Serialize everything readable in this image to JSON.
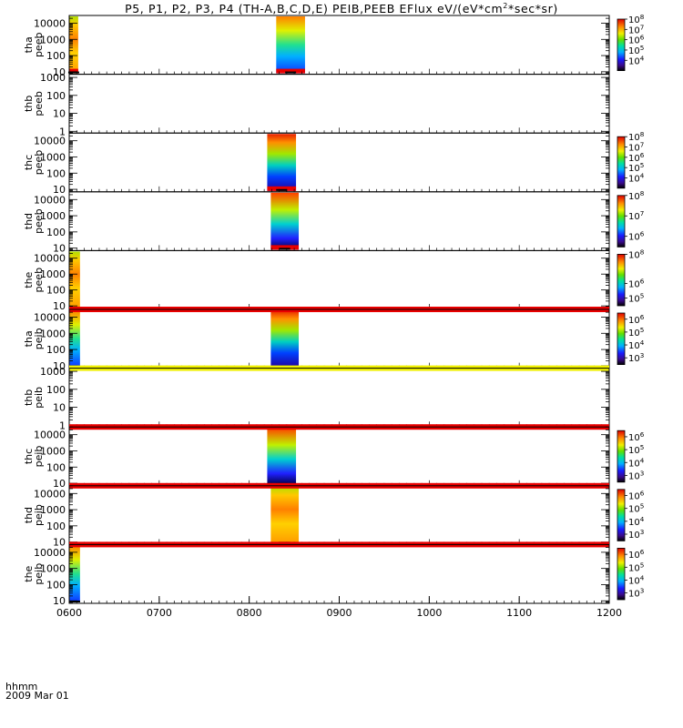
{
  "title": {
    "main": "P5, P1, P2, P3, P4 (TH-A,B,C,D,E) PEIB,PEEB EFlux eV/(eV*cm",
    "sup": "2",
    "tail": "*sec*sr)"
  },
  "footer": {
    "hhmm": "hhmm",
    "date": "2009 Mar 01"
  },
  "chart_data": {
    "type": "heatmap",
    "x_axis": {
      "range_hours": [
        6.0,
        12.0
      ],
      "ticks": [
        {
          "value": 6,
          "label": "0600"
        },
        {
          "value": 7,
          "label": "0700"
        },
        {
          "value": 8,
          "label": "0800"
        },
        {
          "value": 9,
          "label": "0900"
        },
        {
          "value": 10,
          "label": "1000"
        },
        {
          "value": 11,
          "label": "1100"
        },
        {
          "value": 12,
          "label": "1200"
        }
      ]
    },
    "panels": [
      {
        "probe": "tha",
        "product": "peeb",
        "ylim": [
          7,
          30000
        ],
        "yscale": "log",
        "yticks": [
          "10",
          "100",
          "1000",
          "10000"
        ],
        "data_intervals": [
          [
            6.0,
            6.1
          ],
          [
            8.3,
            8.62
          ]
        ],
        "bottom_band": "red",
        "colorbar": {
          "range": [
            1000.0,
            100000000.0
          ],
          "labels": [
            "10^4",
            "10^5",
            "10^6",
            "10^7",
            "10^8"
          ]
        }
      },
      {
        "probe": "thb",
        "product": "peeb",
        "ylim": [
          0.8,
          1500
        ],
        "yscale": "log",
        "yticks": [
          "1",
          "10",
          "100",
          "1000"
        ],
        "data_intervals": [],
        "colorbar": null
      },
      {
        "probe": "thc",
        "product": "peeb",
        "ylim": [
          7,
          30000
        ],
        "yscale": "log",
        "yticks": [
          "10",
          "100",
          "1000",
          "10000"
        ],
        "data_intervals": [
          [
            8.2,
            8.52
          ]
        ],
        "bottom_band": "red",
        "colorbar": {
          "range": [
            1000.0,
            100000000.0
          ],
          "labels": [
            "10^4",
            "10^5",
            "10^6",
            "10^7",
            "10^8"
          ]
        }
      },
      {
        "probe": "thd",
        "product": "peeb",
        "ylim": [
          7,
          30000
        ],
        "yscale": "log",
        "yticks": [
          "10",
          "100",
          "1000",
          "10000"
        ],
        "data_intervals": [
          [
            8.24,
            8.55
          ]
        ],
        "bottom_band": "red",
        "colorbar": {
          "range": [
            300000.0,
            100000000.0
          ],
          "labels": [
            "10^6",
            "10^7",
            "10^8"
          ]
        }
      },
      {
        "probe": "the",
        "product": "peeb",
        "ylim": [
          6,
          30000
        ],
        "yscale": "log",
        "yticks": [
          "10",
          "100",
          "1000",
          "10000"
        ],
        "data_intervals": [
          [
            6.0,
            6.12
          ]
        ],
        "colorbar": {
          "range": [
            30000.0,
            100000000.0
          ],
          "labels": [
            "10^5",
            "10^6",
            "10^8"
          ]
        }
      },
      {
        "probe": "tha",
        "product": "peib",
        "ylim": [
          7,
          30000
        ],
        "yscale": "log",
        "yticks": [
          "10",
          "100",
          "1000",
          "10000"
        ],
        "data_intervals": [
          [
            6.0,
            6.12
          ],
          [
            8.24,
            8.55
          ]
        ],
        "top_band": "red",
        "colorbar": {
          "range": [
            300.0,
            3000000.0
          ],
          "labels": [
            "10^3",
            "10^4",
            "10^5",
            "10^6"
          ]
        }
      },
      {
        "probe": "thb",
        "product": "peib",
        "ylim": [
          0.8,
          1500
        ],
        "yscale": "log",
        "yticks": [
          "1",
          "10",
          "100",
          "1000"
        ],
        "data_intervals": [],
        "top_band": "yellow",
        "colorbar": null
      },
      {
        "probe": "thc",
        "product": "peib",
        "ylim": [
          7,
          30000
        ],
        "yscale": "log",
        "yticks": [
          "10",
          "100",
          "1000",
          "10000"
        ],
        "data_intervals": [
          [
            8.2,
            8.52
          ]
        ],
        "top_band": "red",
        "colorbar": {
          "range": [
            300.0,
            3000000.0
          ],
          "labels": [
            "10^3",
            "10^4",
            "10^5",
            "10^6"
          ]
        }
      },
      {
        "probe": "thd",
        "product": "peib",
        "ylim": [
          7,
          30000
        ],
        "yscale": "log",
        "yticks": [
          "10",
          "100",
          "1000",
          "10000"
        ],
        "data_intervals": [
          [
            8.24,
            8.55
          ]
        ],
        "top_band": "red",
        "colorbar": {
          "range": [
            300.0,
            3000000.0
          ],
          "labels": [
            "10^3",
            "10^4",
            "10^5",
            "10^6"
          ]
        }
      },
      {
        "probe": "the",
        "product": "peib",
        "ylim": [
          7,
          30000
        ],
        "yscale": "log",
        "yticks": [
          "10",
          "100",
          "1000",
          "10000"
        ],
        "data_intervals": [
          [
            6.0,
            6.12
          ]
        ],
        "top_band": "red",
        "colorbar": {
          "range": [
            300.0,
            3000000.0
          ],
          "labels": [
            "10^3",
            "10^4",
            "10^5",
            "10^6"
          ]
        }
      }
    ]
  }
}
